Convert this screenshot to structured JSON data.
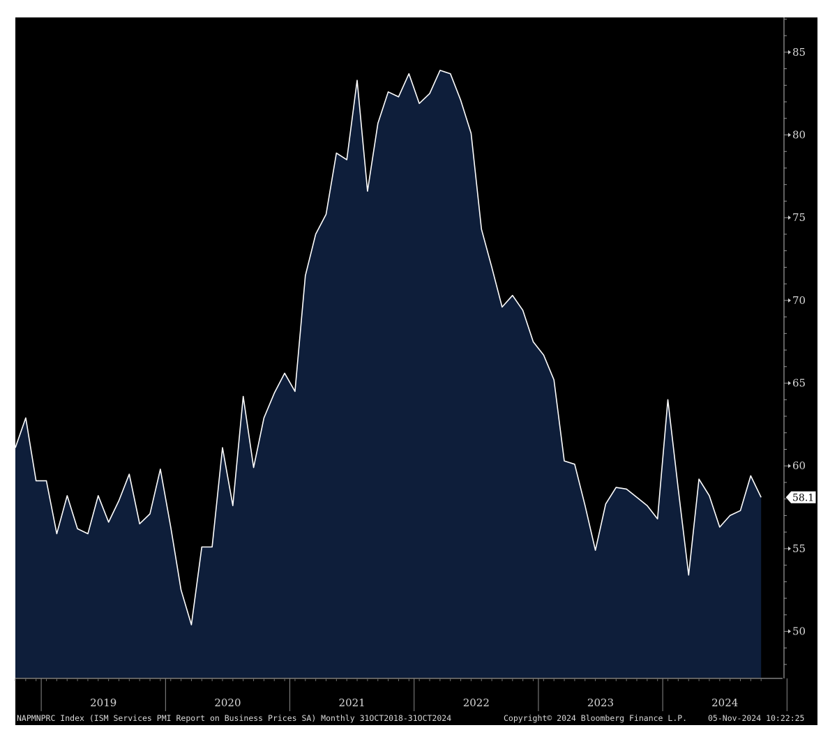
{
  "chart_data": {
    "type": "area",
    "ticker": "NAPMNPRC Index",
    "series_name": "ISM Services PMI Report on Business Prices SA",
    "x": [
      "2018-10",
      "2018-11",
      "2018-12",
      "2019-01",
      "2019-02",
      "2019-03",
      "2019-04",
      "2019-05",
      "2019-06",
      "2019-07",
      "2019-08",
      "2019-09",
      "2019-10",
      "2019-11",
      "2019-12",
      "2020-01",
      "2020-02",
      "2020-03",
      "2020-04",
      "2020-05",
      "2020-06",
      "2020-07",
      "2020-08",
      "2020-09",
      "2020-10",
      "2020-11",
      "2020-12",
      "2021-01",
      "2021-02",
      "2021-03",
      "2021-04",
      "2021-05",
      "2021-06",
      "2021-07",
      "2021-08",
      "2021-09",
      "2021-10",
      "2021-11",
      "2021-12",
      "2022-01",
      "2022-02",
      "2022-03",
      "2022-04",
      "2022-05",
      "2022-06",
      "2022-07",
      "2022-08",
      "2022-09",
      "2022-10",
      "2022-11",
      "2022-12",
      "2023-01",
      "2023-02",
      "2023-03",
      "2023-04",
      "2023-05",
      "2023-06",
      "2023-07",
      "2023-08",
      "2023-09",
      "2023-10",
      "2023-11",
      "2023-12",
      "2024-01",
      "2024-02",
      "2024-03",
      "2024-04",
      "2024-05",
      "2024-06",
      "2024-07",
      "2024-08",
      "2024-09",
      "2024-10"
    ],
    "values": [
      61.1,
      62.9,
      59.1,
      59.1,
      55.9,
      58.2,
      56.2,
      55.9,
      58.2,
      56.6,
      57.9,
      59.5,
      56.5,
      57.1,
      59.8,
      56.3,
      52.5,
      50.4,
      55.1,
      55.1,
      61.1,
      57.6,
      64.2,
      59.9,
      62.9,
      64.4,
      65.6,
      64.5,
      71.5,
      74.0,
      75.2,
      78.9,
      78.5,
      83.3,
      76.6,
      80.7,
      82.6,
      82.3,
      83.7,
      81.9,
      82.5,
      83.9,
      83.7,
      82.1,
      80.1,
      74.3,
      72.0,
      69.6,
      70.3,
      69.4,
      67.5,
      66.7,
      65.2,
      60.3,
      60.1,
      57.6,
      54.9,
      57.7,
      58.7,
      58.6,
      58.1,
      57.6,
      56.8,
      64.0,
      58.6,
      53.4,
      59.2,
      58.2,
      56.3,
      57.0,
      57.3,
      59.4,
      58.1
    ],
    "last_value_label": "58.1",
    "y_ticks": [
      "85",
      "80",
      "75",
      "70",
      "65",
      "60",
      "55",
      "50"
    ],
    "y_tick_values": [
      85,
      80,
      75,
      70,
      65,
      60,
      55,
      50
    ],
    "ylim": [
      47.2,
      87.1
    ],
    "year_labels": [
      "2019",
      "2020",
      "2021",
      "2022",
      "2023",
      "2024"
    ],
    "grid": false,
    "colors": {
      "background": "#000000",
      "fill": "#0e1e3a",
      "line": "#ffffff",
      "text": "#d8d8d8"
    }
  },
  "footer": {
    "description": "NAPMNPRC Index (ISM Services PMI Report on Business Prices SA)  Monthly 31OCT2018-31OCT2024",
    "copyright": "Copyright© 2024 Bloomberg Finance L.P.",
    "timestamp": "05-Nov-2024 10:22:25"
  }
}
